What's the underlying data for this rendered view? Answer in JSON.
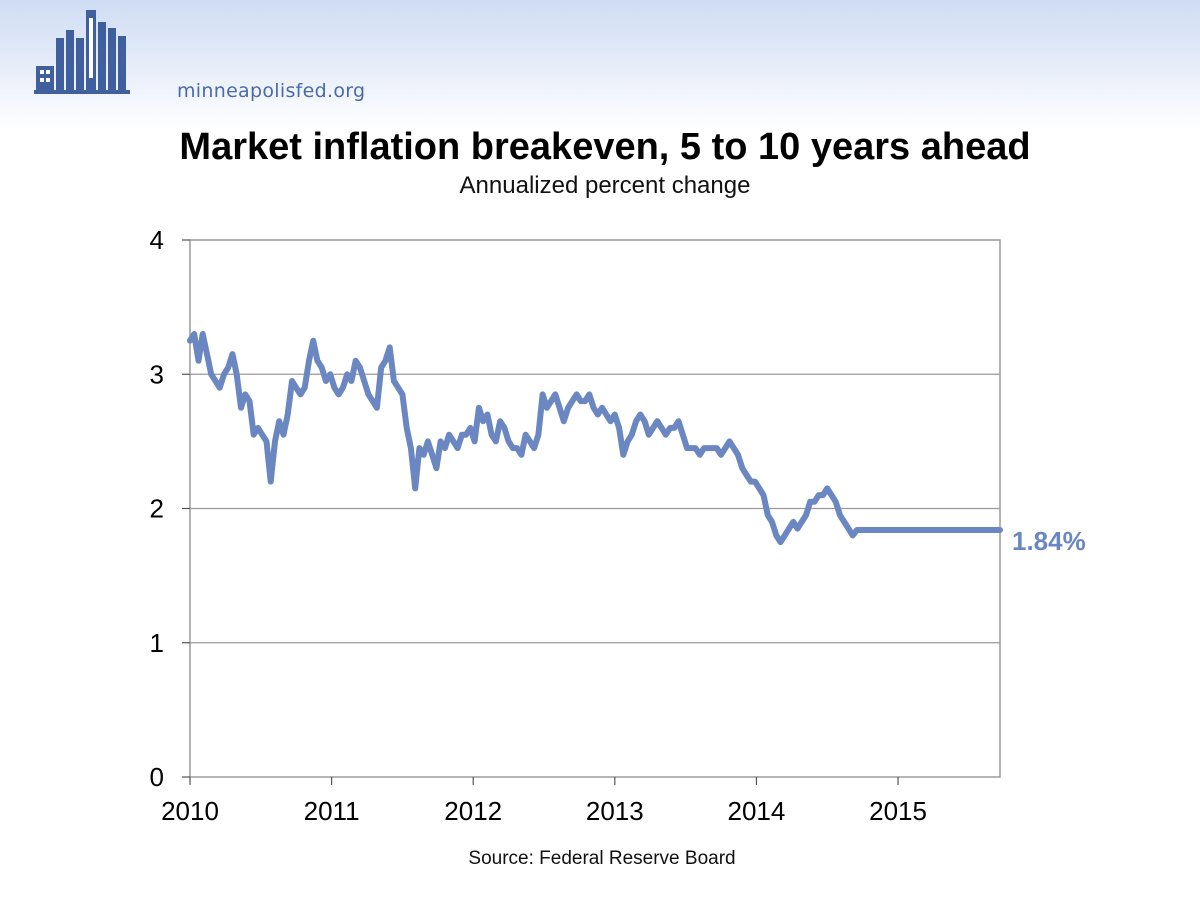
{
  "header": {
    "site_label": "minneapolisfed.org"
  },
  "chart_data": {
    "type": "line",
    "title": "Market inflation breakeven, 5 to 10 years ahead",
    "subtitle": "Annualized percent change",
    "source": "Source: Federal Reserve Board",
    "xlabel": "",
    "ylabel": "",
    "xlim": [
      2010.0,
      2015.72
    ],
    "ylim": [
      0,
      4
    ],
    "y_ticks": [
      "0",
      "1",
      "2",
      "3",
      "4"
    ],
    "x_ticks": [
      "2010",
      "2011",
      "2012",
      "2013",
      "2014",
      "2015"
    ],
    "grid": "horizontal",
    "line_color": "#6b87c2",
    "end_label": "1.84%",
    "series": [
      {
        "x": [
          2010.0,
          2010.03,
          2010.06,
          2010.09,
          2010.12,
          2010.15,
          2010.18,
          2010.21,
          2010.24,
          2010.27,
          2010.3,
          2010.33,
          2010.36,
          2010.39,
          2010.42,
          2010.45,
          2010.48,
          2010.51,
          2010.54,
          2010.57,
          2010.6,
          2010.63,
          2010.66,
          2010.69,
          2010.72,
          2010.75,
          2010.78,
          2010.81,
          2010.84,
          2010.87,
          2010.9,
          2010.93,
          2010.96,
          2010.99,
          2011.02,
          2011.05,
          2011.08,
          2011.11,
          2011.14,
          2011.17,
          2011.2,
          2011.23,
          2011.26,
          2011.29,
          2011.32,
          2011.35,
          2011.38,
          2011.41,
          2011.44,
          2011.47,
          2011.5,
          2011.53,
          2011.56,
          2011.59,
          2011.62,
          2011.65,
          2011.68,
          2011.71,
          2011.74,
          2011.77,
          2011.8,
          2011.83,
          2011.86,
          2011.89,
          2011.92,
          2011.95,
          2011.98,
          2012.01,
          2012.04,
          2012.07,
          2012.1,
          2012.13,
          2012.16,
          2012.19,
          2012.22,
          2012.25,
          2012.28,
          2012.31,
          2012.34,
          2012.37,
          2012.4,
          2012.43,
          2012.46,
          2012.49,
          2012.52,
          2012.55,
          2012.58,
          2012.61,
          2012.64,
          2012.67,
          2012.7,
          2012.73,
          2012.76,
          2012.79,
          2012.82,
          2012.85,
          2012.88,
          2012.91,
          2012.94,
          2012.97,
          2013.0,
          2013.03,
          2013.06,
          2013.09,
          2013.12,
          2013.15,
          2013.18,
          2013.21,
          2013.24,
          2013.27,
          2013.3,
          2013.33,
          2013.36,
          2013.39,
          2013.42,
          2013.45,
          2013.48,
          2013.51,
          2013.54,
          2013.57,
          2013.6,
          2013.63,
          2013.66,
          2013.69,
          2013.72,
          2013.75,
          2013.78,
          2013.81,
          2013.84,
          2013.87,
          2013.9,
          2013.93,
          2013.96,
          2013.99,
          2014.02,
          2014.05,
          2014.08,
          2014.11,
          2014.14,
          2014.17,
          2014.2,
          2014.23,
          2014.26,
          2014.29,
          2014.32,
          2014.35,
          2014.38,
          2014.41,
          2014.44,
          2014.47,
          2014.5,
          2014.53,
          2014.56,
          2014.59,
          2014.62,
          2014.65,
          2014.68,
          2014.71,
          2014.74,
          2014.77,
          2014.8,
          2014.83,
          2014.86,
          2014.89,
          2014.92,
          2014.95,
          2014.98,
          2015.01,
          2015.04,
          2015.07,
          2015.1,
          2015.13,
          2015.16,
          2015.19,
          2015.22,
          2015.25,
          2015.28,
          2015.31,
          2015.34,
          2015.37,
          2015.4,
          2015.43,
          2015.46,
          2015.49,
          2015.52,
          2015.55,
          2015.58,
          2015.61,
          2015.64,
          2015.67,
          2015.7,
          2015.72
        ],
        "y": [
          3.25,
          3.3,
          3.1,
          3.3,
          3.15,
          3.0,
          2.95,
          2.9,
          3.0,
          3.05,
          3.15,
          3.0,
          2.75,
          2.85,
          2.8,
          2.55,
          2.6,
          2.55,
          2.5,
          2.2,
          2.5,
          2.65,
          2.55,
          2.7,
          2.95,
          2.9,
          2.85,
          2.9,
          3.1,
          3.25,
          3.1,
          3.05,
          2.95,
          3.0,
          2.9,
          2.85,
          2.9,
          3.0,
          2.95,
          3.1,
          3.05,
          2.95,
          2.85,
          2.8,
          2.75,
          3.05,
          3.1,
          3.2,
          2.95,
          2.9,
          2.85,
          2.6,
          2.45,
          2.15,
          2.45,
          2.4,
          2.5,
          2.4,
          2.3,
          2.5,
          2.45,
          2.55,
          2.5,
          2.45,
          2.55,
          2.55,
          2.6,
          2.5,
          2.75,
          2.65,
          2.7,
          2.55,
          2.5,
          2.65,
          2.6,
          2.5,
          2.45,
          2.45,
          2.4,
          2.55,
          2.5,
          2.45,
          2.55,
          2.85,
          2.75,
          2.8,
          2.85,
          2.75,
          2.65,
          2.75,
          2.8,
          2.85,
          2.8,
          2.8,
          2.85,
          2.75,
          2.7,
          2.75,
          2.7,
          2.65,
          2.7,
          2.6,
          2.4,
          2.5,
          2.55,
          2.65,
          2.7,
          2.65,
          2.55,
          2.6,
          2.65,
          2.6,
          2.55,
          2.6,
          2.6,
          2.65,
          2.55,
          2.45,
          2.45,
          2.45,
          2.4,
          2.45,
          2.45,
          2.45,
          2.45,
          2.4,
          2.45,
          2.5,
          2.45,
          2.4,
          2.3,
          2.25,
          2.2,
          2.2,
          2.15,
          2.1,
          1.95,
          1.9,
          1.8,
          1.75,
          1.8,
          1.85,
          1.9,
          1.85,
          1.9,
          1.95,
          2.05,
          2.05,
          2.1,
          2.1,
          2.15,
          2.1,
          2.05,
          1.95,
          1.9,
          1.85,
          1.8,
          1.84,
          1.84,
          1.84,
          1.84,
          1.84,
          1.84,
          1.84,
          1.84,
          1.84,
          1.84,
          1.84,
          1.84,
          1.84,
          1.84,
          1.84,
          1.84,
          1.84,
          1.84,
          1.84,
          1.84,
          1.84,
          1.84,
          1.84,
          1.84,
          1.84,
          1.84,
          1.84,
          1.84,
          1.84,
          1.84,
          1.84,
          1.84,
          1.84,
          1.84,
          1.84
        ]
      }
    ]
  }
}
